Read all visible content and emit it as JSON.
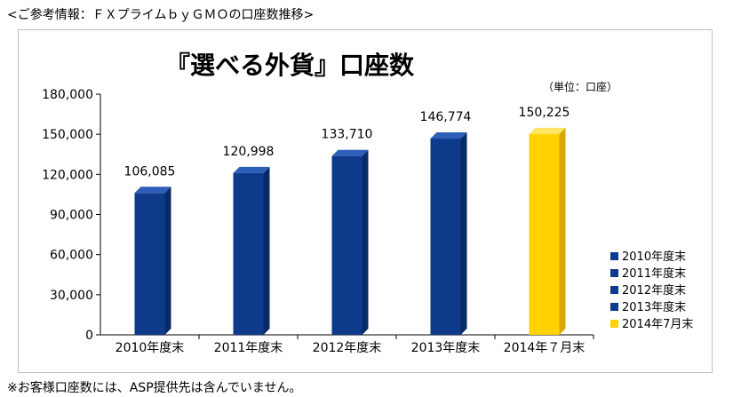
{
  "header": {
    "caption": "<ご参考情報：ＦＸプライムｂｙＧＭＯの口座数推移>"
  },
  "footer": {
    "note": "※お客様口座数には、ASP提供先は含んでいません。"
  },
  "chart_data": {
    "type": "bar",
    "title": "『選べる外貨』口座数",
    "unit": "（単位：口座）",
    "categories": [
      "2010年度末",
      "2011年度末",
      "2012年度末",
      "2013年度末",
      "2014年７月末"
    ],
    "values": [
      106085,
      120998,
      133710,
      146774,
      150225
    ],
    "value_labels": [
      "106,085",
      "120,998",
      "133,710",
      "146,774",
      "150,225"
    ],
    "ylim": [
      0,
      180000
    ],
    "yticks": [
      0,
      30000,
      60000,
      90000,
      120000,
      150000,
      180000
    ],
    "ytick_labels": [
      "0",
      "30,000",
      "60,000",
      "90,000",
      "120,000",
      "150,000",
      "180,000"
    ],
    "grid": false,
    "legend_position": "right",
    "legend": [
      "2010年度末",
      "2011年度末",
      "2012年度末",
      "2013年度末",
      "2014年7月末"
    ],
    "colors": {
      "series": [
        "#0e3a8c",
        "#0e3a8c",
        "#0e3a8c",
        "#0e3a8c",
        "#ffd200"
      ],
      "series_top": [
        "#2e5fb8",
        "#2e5fb8",
        "#2e5fb8",
        "#2e5fb8",
        "#ffe566"
      ],
      "series_side": [
        "#082a66",
        "#082a66",
        "#082a66",
        "#082a66",
        "#d9a800"
      ]
    }
  }
}
